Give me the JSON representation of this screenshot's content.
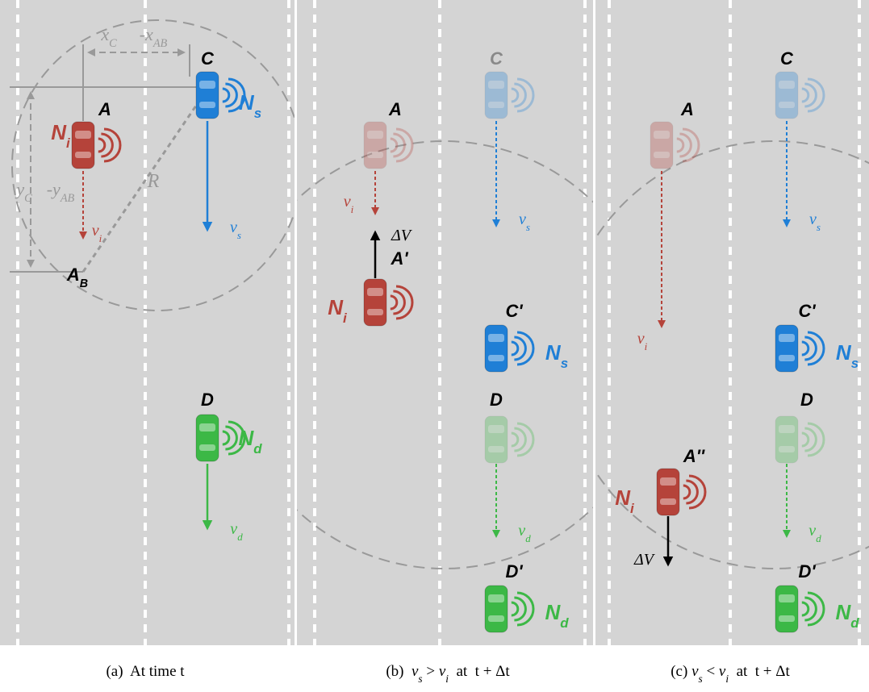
{
  "panels": [
    {
      "caption": [
        {
          "text": "(a)  At time t"
        }
      ],
      "labels": [
        {
          "text": "C"
        },
        {
          "text": "N",
          "sub": "s"
        },
        {
          "text": "A"
        },
        {
          "text": "N",
          "sub": "i"
        },
        {
          "text": "R"
        },
        {
          "text": "v",
          "sub": "i"
        },
        {
          "text": "v",
          "sub": "s"
        },
        {
          "text": "A",
          "sub": "B"
        },
        {
          "text": "D"
        },
        {
          "text": "N",
          "sub": "d"
        },
        {
          "text": "v",
          "sub": "d"
        },
        {
          "text": "x",
          "sub": "C"
        },
        {
          "text": "-x",
          "sub": "AB"
        },
        {
          "text": "y",
          "sub": "C"
        },
        {
          "text": "-y",
          "sub": "AB"
        }
      ]
    },
    {
      "caption": [
        {
          "text": "(b)  "
        },
        {
          "text": "v",
          "sub": "s"
        },
        {
          "text": " > "
        },
        {
          "text": "v",
          "sub": "i"
        },
        {
          "text": "  at  t + Δt"
        }
      ],
      "labels": [
        {
          "text": "A"
        },
        {
          "text": "C"
        },
        {
          "text": "v",
          "sub": "i"
        },
        {
          "text": "v",
          "sub": "s"
        },
        {
          "text": "ΔV"
        },
        {
          "text": "A'"
        },
        {
          "text": "N",
          "sub": "i"
        },
        {
          "text": "C'"
        },
        {
          "text": "N",
          "sub": "s"
        },
        {
          "text": "D"
        },
        {
          "text": "v",
          "sub": "d"
        },
        {
          "text": "D'"
        },
        {
          "text": "N",
          "sub": "d"
        }
      ]
    },
    {
      "caption": [
        {
          "text": "(c) "
        },
        {
          "text": "v",
          "sub": "s"
        },
        {
          "text": " < "
        },
        {
          "text": "v",
          "sub": "i"
        },
        {
          "text": "  at  t + Δt"
        }
      ],
      "labels": [
        {
          "text": "A"
        },
        {
          "text": "C"
        },
        {
          "text": "v",
          "sub": "i"
        },
        {
          "text": "v",
          "sub": "s"
        },
        {
          "text": "A''"
        },
        {
          "text": "N",
          "sub": "i"
        },
        {
          "text": "ΔV"
        },
        {
          "text": "C'"
        },
        {
          "text": "N",
          "sub": "s"
        },
        {
          "text": "D"
        },
        {
          "text": "v",
          "sub": "d"
        },
        {
          "text": "D'"
        },
        {
          "text": "N",
          "sub": "d"
        }
      ]
    }
  ]
}
